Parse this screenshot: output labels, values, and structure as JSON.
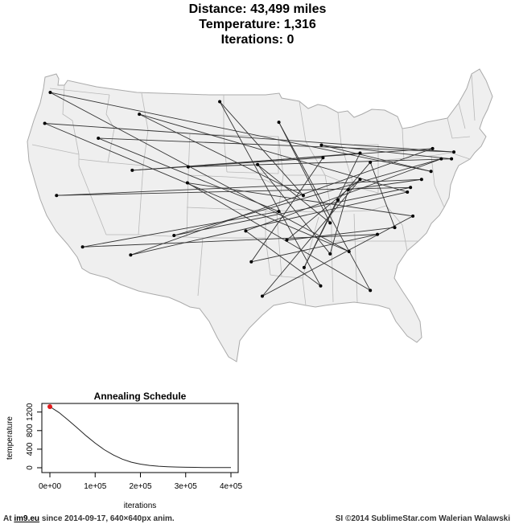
{
  "header": {
    "distance": "Distance: 43,499 miles",
    "temperature": "Temperature: 1,316",
    "iterations": "Iterations: 0"
  },
  "footer": {
    "prefix": "At",
    "site": "im9.eu",
    "suffix": "since 2014-09-17, 640×640px anim.",
    "credit": "SI ©2014 SublimeStar.com Walerian Walawski"
  },
  "colors": {
    "map_fill": "#efefef",
    "map_border": "#aaaaaa",
    "route": "#333333",
    "marker": "#e31a1c",
    "curve": "#222222"
  },
  "chart_data": [
    {
      "type": "line",
      "title": "Annealing Schedule",
      "xlabel": "iterations",
      "ylabel": "temperature",
      "xlim": [
        0,
        400000
      ],
      "ylim": [
        0,
        1400
      ],
      "x_ticks": [
        0,
        100000,
        200000,
        300000,
        400000
      ],
      "x_tick_labels": [
        "0e+00",
        "1e+05",
        "2e+05",
        "3e+05",
        "4e+05"
      ],
      "y_ticks": [
        0,
        400,
        800,
        1200
      ],
      "y_tick_labels": [
        "0",
        "400",
        "800",
        "1200"
      ],
      "series": [
        {
          "x": [
            0,
            20000,
            40000,
            60000,
            80000,
            100000,
            120000,
            140000,
            160000,
            180000,
            200000,
            220000,
            240000,
            260000,
            280000,
            300000,
            320000,
            340000,
            360000,
            380000,
            400000
          ],
          "values": [
            1316,
            1190,
            1030,
            860,
            690,
            530,
            390,
            275,
            185,
            120,
            78,
            50,
            33,
            22,
            15,
            11,
            8,
            6,
            5,
            4,
            4
          ]
        }
      ],
      "current_point": {
        "x": 0,
        "y": 1316
      },
      "grid": false
    },
    {
      "type": "scatter",
      "description_free": true,
      "city_count": 44,
      "route_order": [
        [
          -122.3,
          47.6
        ],
        [
          -84.4,
          33.7
        ],
        [
          -123.0,
          44.9
        ],
        [
          -71.1,
          42.4
        ],
        [
          -116.2,
          43.6
        ],
        [
          -93.3,
          37.2
        ],
        [
          -118.2,
          34.1
        ],
        [
          -80.8,
          35.2
        ],
        [
          -96.8,
          32.8
        ],
        [
          -87.7,
          41.9
        ],
        [
          -111.9,
          40.8
        ],
        [
          -73.8,
          42.7
        ],
        [
          -112.1,
          33.4
        ],
        [
          -77.0,
          38.9
        ],
        [
          -111.0,
          45.7
        ],
        [
          -90.2,
          38.6
        ],
        [
          -100.8,
          46.8
        ],
        [
          -88.0,
          30.7
        ],
        [
          -97.5,
          35.5
        ],
        [
          -72.7,
          41.8
        ],
        [
          -106.6,
          35.1
        ],
        [
          -76.6,
          39.3
        ],
        [
          -121.5,
          38.6
        ],
        [
          -75.2,
          40.0
        ],
        [
          -84.5,
          39.1
        ],
        [
          -86.8,
          33.5
        ],
        [
          -96.0,
          41.3
        ],
        [
          -86.8,
          36.2
        ],
        [
          -93.3,
          45.0
        ],
        [
          -81.7,
          30.3
        ],
        [
          -104.9,
          39.7
        ],
        [
          -76.3,
          36.8
        ],
        [
          -95.4,
          29.8
        ],
        [
          -83.0,
          40.0
        ],
        [
          -92.3,
          34.7
        ],
        [
          -78.6,
          35.8
        ],
        [
          -81.7,
          41.5
        ],
        [
          -85.8,
          38.2
        ],
        [
          -90.1,
          32.3
        ],
        [
          -83.0,
          42.3
        ],
        [
          -104.8,
          41.1
        ],
        [
          -71.4,
          41.8
        ],
        [
          -87.9,
          43.0
        ],
        [
          -74.0,
          40.7
        ]
      ]
    }
  ]
}
